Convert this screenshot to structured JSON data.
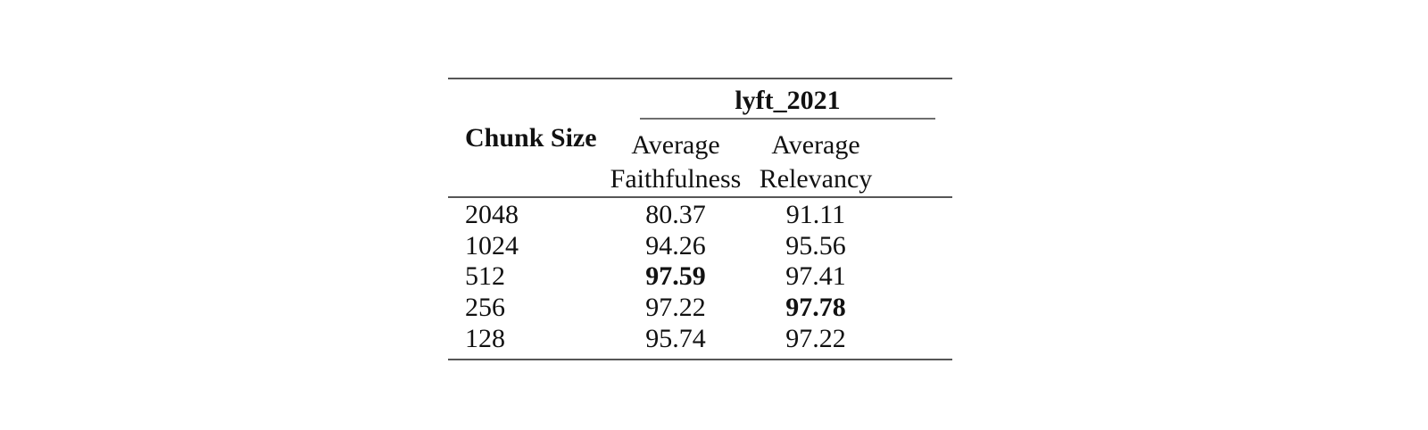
{
  "page": {
    "background_color": "#ffffff",
    "text_color": "#111111",
    "rule_color_heavy": "#565656",
    "rule_color_light": "#6e6e6e"
  },
  "table": {
    "group_header": "lyft_2021",
    "row_header": "Chunk Size",
    "columns": [
      {
        "line1": "Average",
        "line2": "Faithfulness"
      },
      {
        "line1": "Average",
        "line2": "Relevancy"
      }
    ],
    "rows": [
      {
        "chunk_size": "2048",
        "avg_faithfulness": "80.37",
        "avg_relevancy": "91.11",
        "faithfulness_bold": false,
        "relevancy_bold": false
      },
      {
        "chunk_size": "1024",
        "avg_faithfulness": "94.26",
        "avg_relevancy": "95.56",
        "faithfulness_bold": false,
        "relevancy_bold": false
      },
      {
        "chunk_size": "512",
        "avg_faithfulness": "97.59",
        "avg_relevancy": "97.41",
        "faithfulness_bold": true,
        "relevancy_bold": false
      },
      {
        "chunk_size": "256",
        "avg_faithfulness": "97.22",
        "avg_relevancy": "97.78",
        "faithfulness_bold": false,
        "relevancy_bold": true
      },
      {
        "chunk_size": "128",
        "avg_faithfulness": "95.74",
        "avg_relevancy": "97.22",
        "faithfulness_bold": false,
        "relevancy_bold": false
      }
    ]
  },
  "chart_data": {
    "type": "table",
    "title": "lyft_2021",
    "columns": [
      "Chunk Size",
      "Average Faithfulness",
      "Average Relevancy"
    ],
    "rows": [
      [
        2048,
        80.37,
        91.11
      ],
      [
        1024,
        94.26,
        95.56
      ],
      [
        512,
        97.59,
        97.41
      ],
      [
        256,
        97.22,
        97.78
      ],
      [
        128,
        95.74,
        97.22
      ]
    ],
    "bold_values": [
      {
        "chunk_size": 512,
        "column": "Average Faithfulness",
        "value": 97.59
      },
      {
        "chunk_size": 256,
        "column": "Average Relevancy",
        "value": 97.78
      }
    ]
  }
}
